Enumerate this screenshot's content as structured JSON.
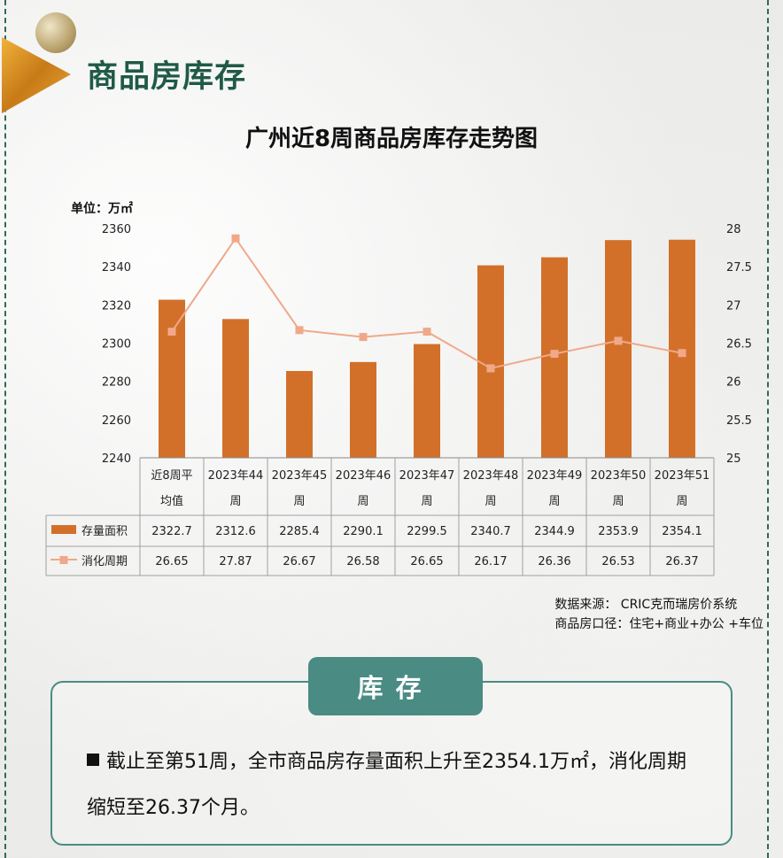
{
  "header": {
    "section_title": "商品房库存"
  },
  "chart_data": {
    "type": "bar",
    "title": "广州近8周商品房库存走势图",
    "unit_label": "单位：万㎡",
    "categories": [
      [
        "近8周平",
        "均值"
      ],
      [
        "2023年44",
        "周"
      ],
      [
        "2023年45",
        "周"
      ],
      [
        "2023年46",
        "周"
      ],
      [
        "2023年47",
        "周"
      ],
      [
        "2023年48",
        "周"
      ],
      [
        "2023年49",
        "周"
      ],
      [
        "2023年50",
        "周"
      ],
      [
        "2023年51",
        "周"
      ]
    ],
    "y_left": {
      "min": 2240,
      "max": 2360,
      "ticks": [
        2240,
        2260,
        2280,
        2300,
        2320,
        2340,
        2360
      ]
    },
    "y_right": {
      "min": 25,
      "max": 28,
      "ticks": [
        25,
        25.5,
        26,
        26.5,
        27,
        27.5,
        28
      ]
    },
    "series": [
      {
        "name": "存量面积",
        "type": "bar",
        "axis": "left",
        "color": "#d2702a",
        "values": [
          2322.7,
          2312.6,
          2285.4,
          2290.1,
          2299.5,
          2340.7,
          2344.9,
          2353.9,
          2354.1
        ],
        "labels": [
          "2322.7",
          "2312.6",
          "2285.4",
          "2290.1",
          "2299.5",
          "2340.7",
          "2344.9",
          "2353.9",
          "2354.1"
        ]
      },
      {
        "name": "消化周期",
        "type": "line",
        "axis": "right",
        "color": "#f0a88a",
        "values": [
          26.65,
          27.87,
          26.67,
          26.58,
          26.65,
          26.17,
          26.36,
          26.53,
          26.37
        ],
        "labels": [
          "26.65",
          "27.87",
          "26.67",
          "26.58",
          "26.65",
          "26.17",
          "26.36",
          "26.53",
          "26.37"
        ]
      }
    ]
  },
  "source": {
    "line1": "数据来源： CRIC克而瑞房价系统",
    "line2": "商品房口径：住宅+商业+办公 +车位"
  },
  "summary": {
    "badge": "库存",
    "text": "截止至第51周，全市商品房存量面积上升至2354.1万㎡，消化周期缩短至26.37个月。"
  }
}
